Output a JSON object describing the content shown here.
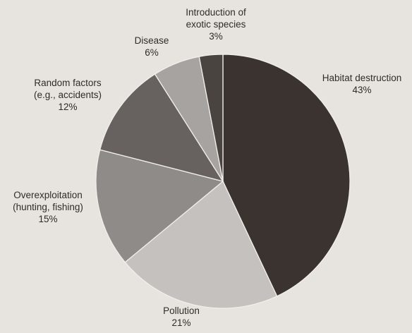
{
  "chart_data": {
    "type": "pie",
    "start_angle_deg": 0,
    "direction": "clockwise",
    "slices": [
      {
        "label_lines": [
          "Habitat destruction"
        ],
        "value": 43,
        "value_label": "43%",
        "color": "#3a3330"
      },
      {
        "label_lines": [
          "Pollution"
        ],
        "value": 21,
        "value_label": "21%",
        "color": "#c4c1bf"
      },
      {
        "label_lines": [
          "Overexploitation",
          "(hunting, fishing)"
        ],
        "value": 15,
        "value_label": "15%",
        "color": "#8f8b88"
      },
      {
        "label_lines": [
          "Random factors",
          "(e.g., accidents)"
        ],
        "value": 12,
        "value_label": "12%",
        "color": "#67625f"
      },
      {
        "label_lines": [
          "Disease"
        ],
        "value": 6,
        "value_label": "6%",
        "color": "#a7a3a0"
      },
      {
        "label_lines": [
          "Introduction of",
          "exotic species"
        ],
        "value": 3,
        "value_label": "3%",
        "color": "#4a4441"
      }
    ]
  }
}
